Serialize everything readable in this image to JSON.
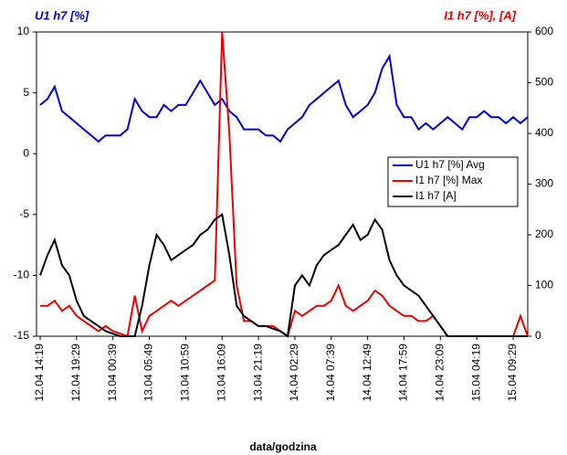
{
  "chart_data": {
    "type": "line",
    "y_title": "U1 h7 [%]",
    "y2_title": "I1 h7 [%], [A]",
    "x_title": "data/godzina",
    "categories": [
      "12.04 14:19",
      null,
      null,
      null,
      null,
      "12.04 19:29",
      null,
      null,
      null,
      null,
      "13.04 00:39",
      null,
      null,
      null,
      null,
      "13.04 05:49",
      null,
      null,
      null,
      null,
      "13.04 10:59",
      null,
      null,
      null,
      null,
      "13.04 16:09",
      null,
      null,
      null,
      null,
      "13.04 21:19",
      null,
      null,
      null,
      null,
      "14.04 02:29",
      null,
      null,
      null,
      null,
      "14.04 07:39",
      null,
      null,
      null,
      null,
      "14.04 12:49",
      null,
      null,
      null,
      null,
      "14.04 17:59",
      null,
      null,
      null,
      null,
      "14.04 23:09",
      null,
      null,
      null,
      null,
      "15.04 04:19",
      null,
      null,
      null,
      null,
      "15.04 09:29",
      null,
      null
    ],
    "ylim": [
      -15,
      10
    ],
    "yticks": [
      -15,
      -10,
      -5,
      0,
      5,
      10
    ],
    "y2lim": [
      0,
      600
    ],
    "y2ticks": [
      0,
      100,
      200,
      300,
      400,
      500,
      600
    ],
    "series": [
      {
        "name": "U1 h7 [%]  Avg",
        "color": "#0000dd",
        "values": [
          4,
          4.5,
          5.5,
          3.5,
          3,
          2.5,
          2,
          1.5,
          1,
          1.5,
          1.5,
          1.5,
          2,
          4.5,
          3.5,
          3,
          3,
          4,
          3.5,
          4,
          4,
          5,
          6,
          5,
          4,
          4.5,
          3.5,
          3,
          2,
          2,
          2,
          1.5,
          1.5,
          1,
          2,
          2.5,
          3,
          4,
          4.5,
          5,
          5.5,
          6,
          4,
          3,
          3.5,
          4,
          5,
          7,
          8,
          4,
          3,
          3,
          2,
          2.5,
          2,
          2.5,
          3,
          2.5,
          2,
          3,
          3,
          3.5,
          3,
          3,
          2.5,
          3,
          2.5,
          3
        ]
      },
      {
        "name": "I1 h7 [%]  Max",
        "color": "#ee0000",
        "axis": "y2",
        "values": [
          60,
          60,
          70,
          50,
          60,
          40,
          30,
          20,
          10,
          20,
          10,
          5,
          0,
          80,
          10,
          40,
          50,
          60,
          70,
          60,
          70,
          80,
          90,
          100,
          110,
          600,
          400,
          100,
          30,
          30,
          20,
          20,
          20,
          10,
          0,
          50,
          40,
          50,
          60,
          60,
          70,
          100,
          60,
          50,
          60,
          70,
          90,
          80,
          60,
          50,
          40,
          40,
          30,
          30,
          40,
          20,
          0,
          0,
          0,
          0,
          0,
          0,
          0,
          0,
          0,
          0,
          40,
          0
        ]
      },
      {
        "name": "I1 h7 [A]",
        "color": "#000000",
        "axis": "y2",
        "values": [
          120,
          160,
          190,
          140,
          120,
          70,
          40,
          30,
          20,
          10,
          5,
          0,
          0,
          0,
          60,
          140,
          200,
          180,
          150,
          160,
          170,
          180,
          200,
          210,
          230,
          240,
          160,
          60,
          40,
          30,
          20,
          20,
          15,
          10,
          0,
          100,
          120,
          100,
          140,
          160,
          170,
          180,
          200,
          220,
          190,
          200,
          230,
          210,
          150,
          120,
          100,
          90,
          80,
          60,
          40,
          20,
          0,
          0,
          0,
          0,
          0,
          0,
          0,
          0,
          0,
          0,
          0,
          0
        ]
      }
    ]
  }
}
